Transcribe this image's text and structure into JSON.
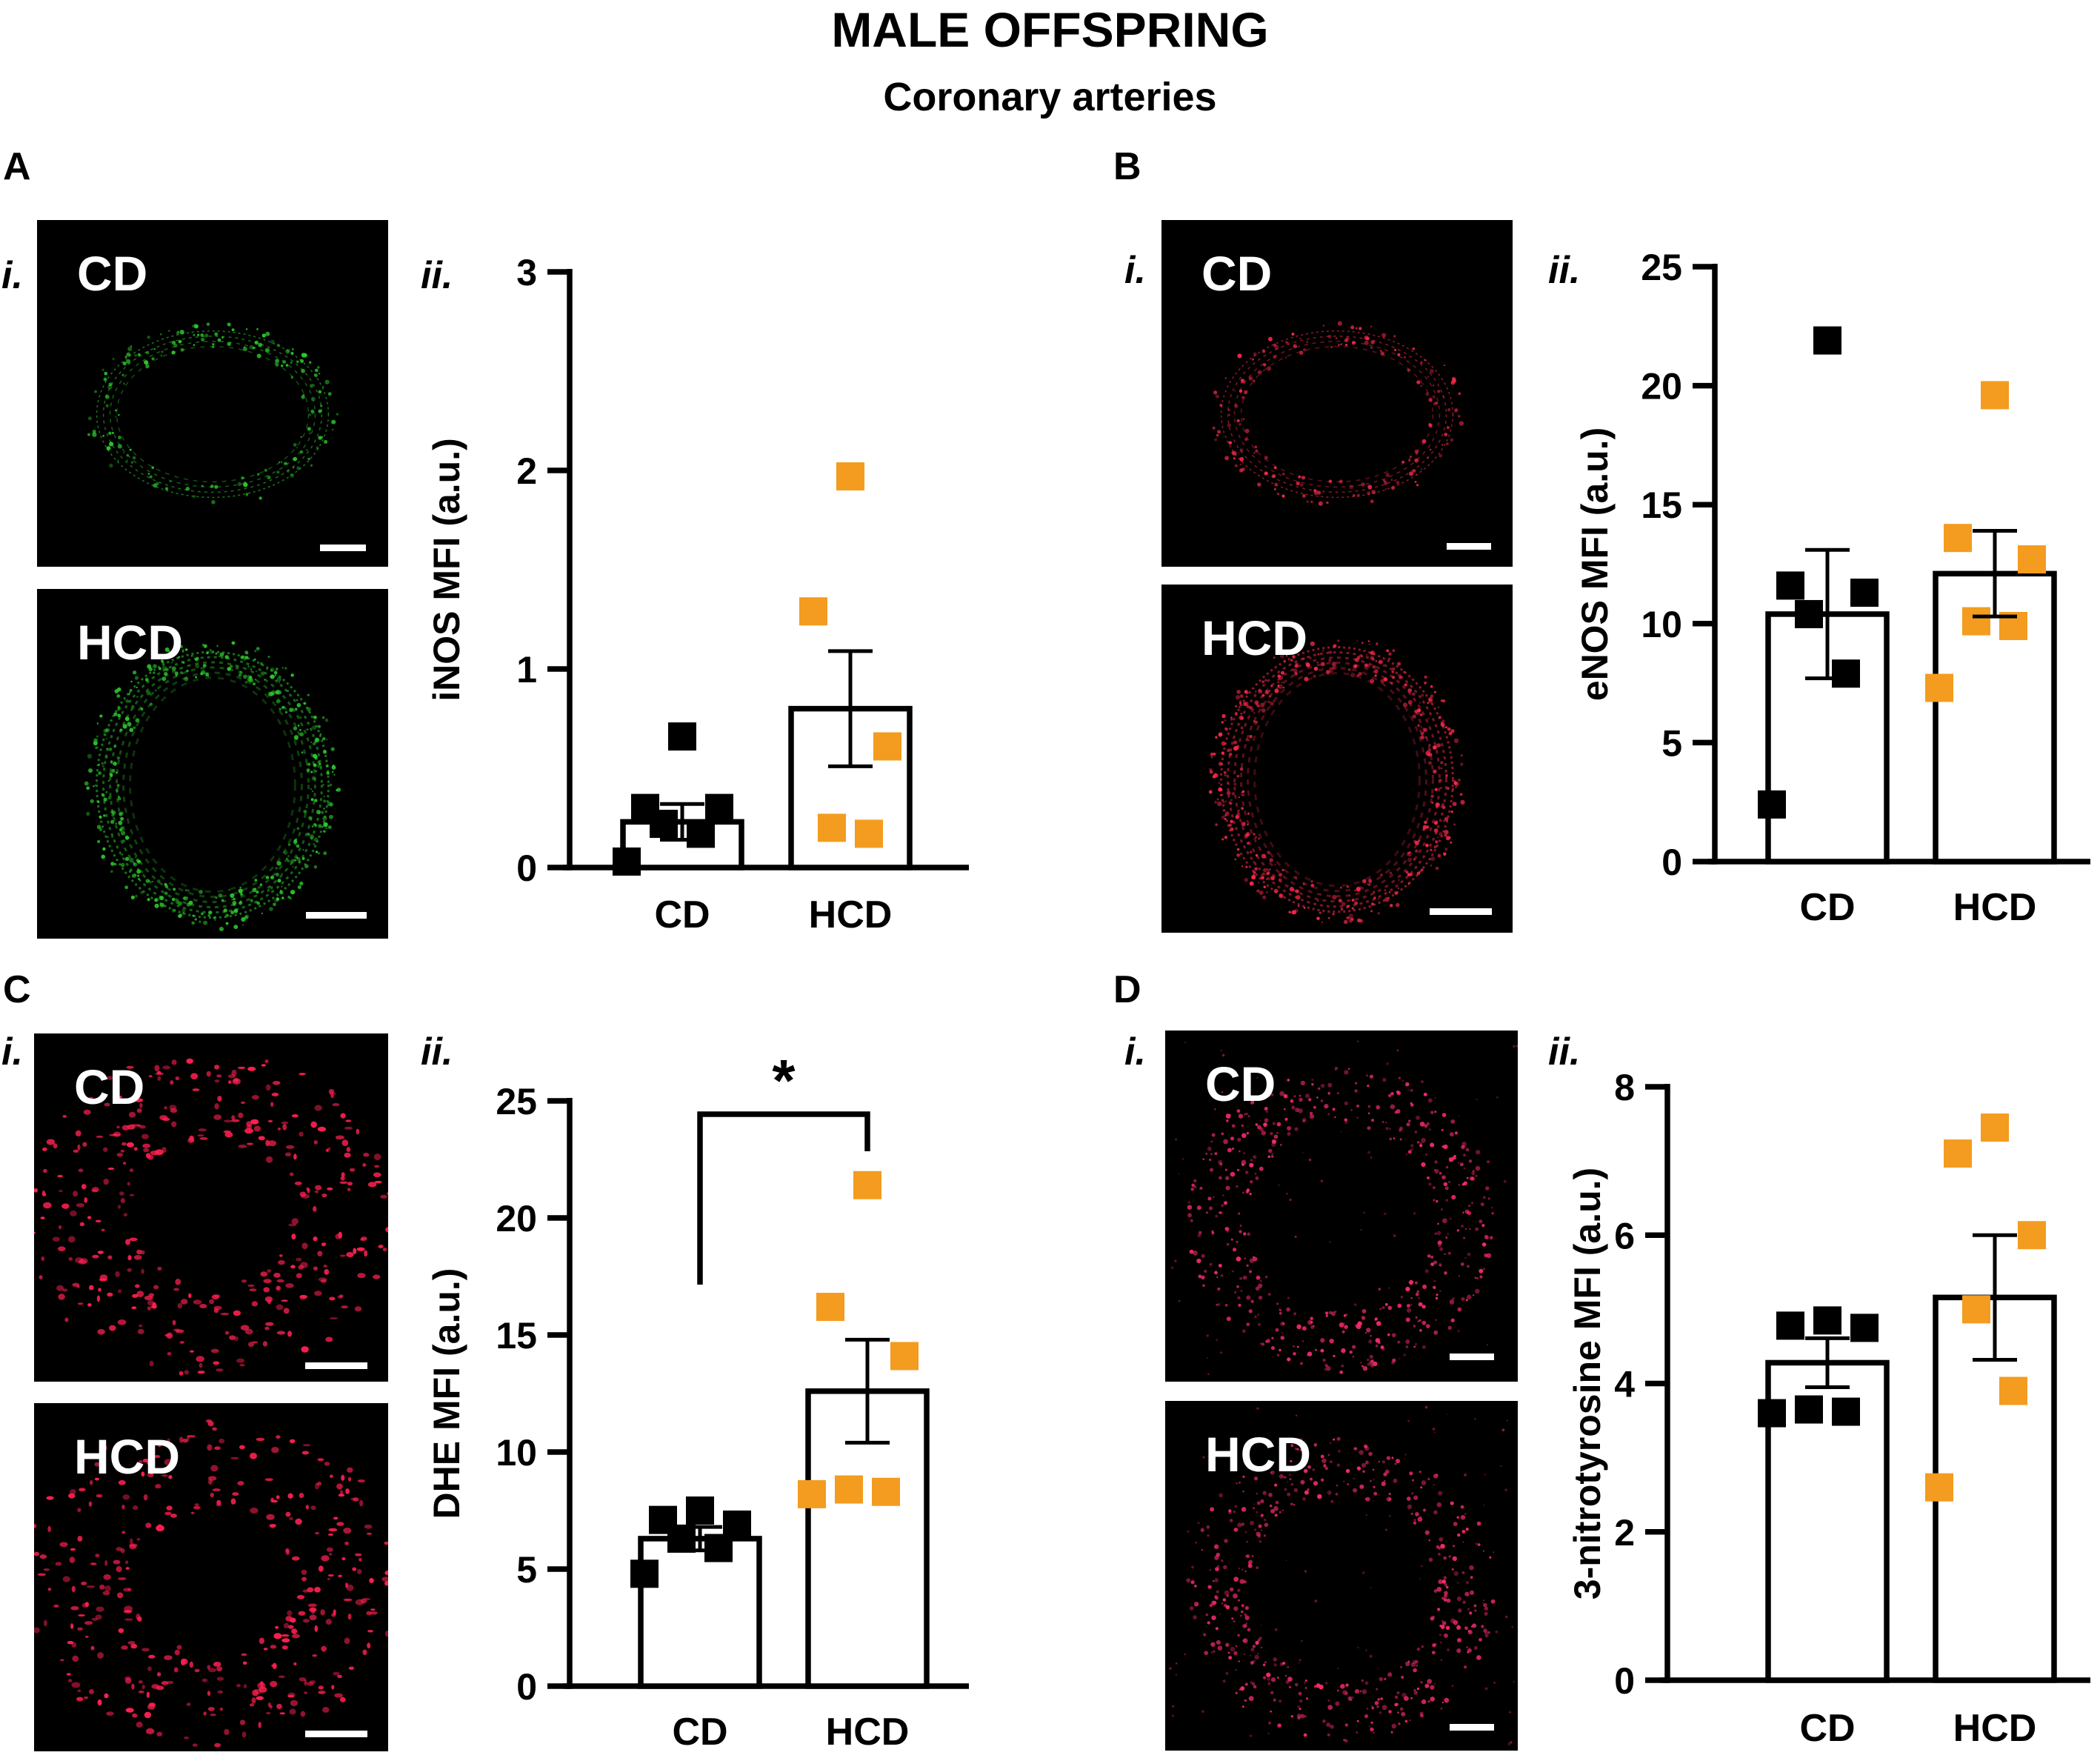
{
  "figure": {
    "title": "MALE OFFSPRING",
    "subtitle": "Coronary arteries"
  },
  "panels": [
    {
      "id": "A",
      "letter": "A",
      "roman_i": "i.",
      "roman_ii": "ii.",
      "stain_color": "#2ecc2e",
      "images": [
        {
          "label": "CD",
          "pattern": "thin-ring"
        },
        {
          "label": "HCD",
          "pattern": "thick-ring"
        }
      ]
    },
    {
      "id": "B",
      "letter": "B",
      "roman_i": "i.",
      "roman_ii": "ii.",
      "stain_color": "#ff2a4a",
      "images": [
        {
          "label": "CD",
          "pattern": "thin-ring"
        },
        {
          "label": "HCD",
          "pattern": "thick-ring"
        }
      ]
    },
    {
      "id": "C",
      "letter": "C",
      "roman_i": "i.",
      "roman_ii": "ii.",
      "stain_color": "#ff2050",
      "images": [
        {
          "label": "CD",
          "pattern": "dots"
        },
        {
          "label": "HCD",
          "pattern": "dots"
        }
      ]
    },
    {
      "id": "D",
      "letter": "D",
      "roman_i": "i.",
      "roman_ii": "ii.",
      "stain_color": "#ff2d6a",
      "images": [
        {
          "label": "CD",
          "pattern": "dots-ring"
        },
        {
          "label": "HCD",
          "pattern": "dots-ring"
        }
      ]
    }
  ],
  "colors": {
    "CD": "#000000",
    "HCD": "#f39c1f"
  },
  "chart_data": [
    {
      "panel": "A",
      "type": "bar",
      "categories": [
        "CD",
        "HCD"
      ],
      "ylabel": "iNOS MFI (a.u.)",
      "ylim": [
        0,
        3
      ],
      "yticks": [
        0,
        1,
        2,
        3
      ],
      "tick_labels": [
        "0",
        "1",
        "2",
        "3"
      ],
      "means": [
        0.23,
        0.8
      ],
      "sem": [
        0.09,
        0.29
      ],
      "points": [
        [
          0.66,
          0.3,
          0.3,
          0.22,
          0.17,
          0.03
        ],
        [
          1.97,
          1.29,
          0.61,
          0.2,
          0.17
        ]
      ],
      "significance": null
    },
    {
      "panel": "B",
      "type": "bar",
      "categories": [
        "CD",
        "HCD"
      ],
      "ylabel": "eNOS MFI (a.u.)",
      "ylim": [
        0,
        25
      ],
      "yticks": [
        0,
        5,
        10,
        15,
        20,
        25
      ],
      "tick_labels": [
        "0",
        "5",
        "10",
        "15",
        "20",
        "25"
      ],
      "means": [
        10.4,
        12.1
      ],
      "sem": [
        2.7,
        1.8
      ],
      "points": [
        [
          21.9,
          11.6,
          11.3,
          10.4,
          7.9,
          2.4
        ],
        [
          19.6,
          13.6,
          12.7,
          10.1,
          9.9,
          7.3
        ]
      ],
      "significance": null
    },
    {
      "panel": "C",
      "type": "bar",
      "categories": [
        "CD",
        "HCD"
      ],
      "ylabel": "DHE MFI (a.u.)",
      "ylim": [
        0,
        25
      ],
      "yticks": [
        0,
        5,
        10,
        15,
        20,
        25
      ],
      "tick_labels": [
        "0",
        "5",
        "10",
        "15",
        "20",
        "25"
      ],
      "means": [
        6.3,
        12.6
      ],
      "sem": [
        0.5,
        2.2
      ],
      "points": [
        [
          7.5,
          7.1,
          6.9,
          6.3,
          5.9,
          4.8
        ],
        [
          21.4,
          16.2,
          14.1,
          8.4,
          8.3,
          8.2
        ]
      ],
      "significance": {
        "label": "*",
        "pairs": [
          0,
          1
        ]
      }
    },
    {
      "panel": "D",
      "type": "bar",
      "categories": [
        "CD",
        "HCD"
      ],
      "ylabel": "3-nitrotyrosine MFI (a.u.)",
      "ylim": [
        0,
        8
      ],
      "yticks": [
        0,
        2,
        4,
        6,
        8
      ],
      "tick_labels": [
        "0",
        "2",
        "4",
        "6",
        "8"
      ],
      "means": [
        4.28,
        5.16
      ],
      "sem": [
        0.33,
        0.84
      ],
      "points": [
        [
          4.85,
          4.78,
          4.75,
          3.65,
          3.62,
          3.6
        ],
        [
          7.45,
          7.1,
          6.0,
          5.0,
          3.9,
          2.6
        ]
      ],
      "significance": null
    }
  ]
}
